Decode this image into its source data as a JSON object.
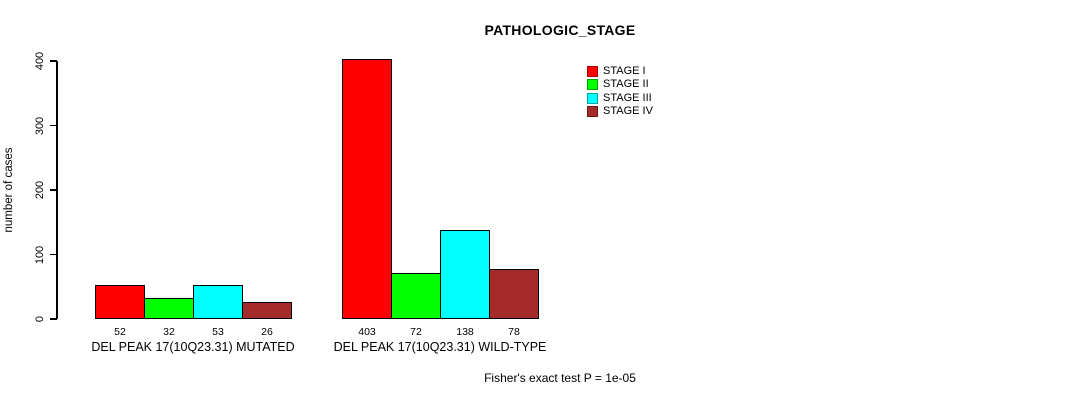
{
  "chart_data": {
    "type": "bar",
    "title": "PATHOLOGIC_STAGE",
    "ylabel": "number of cases",
    "xlabel": "",
    "ylim": [
      0,
      400
    ],
    "yticks": [
      0,
      100,
      200,
      300,
      400
    ],
    "categories": [
      "DEL PEAK 17(10Q23.31) MUTATED",
      "DEL PEAK 17(10Q23.31) WILD-TYPE"
    ],
    "series": [
      {
        "name": "STAGE I",
        "color": "#FF0000",
        "values": [
          52,
          403
        ]
      },
      {
        "name": "STAGE II",
        "color": "#00FF00",
        "values": [
          32,
          72
        ]
      },
      {
        "name": "STAGE III",
        "color": "#00FFFF",
        "values": [
          53,
          138
        ]
      },
      {
        "name": "STAGE IV",
        "color": "#A52A2A",
        "values": [
          26,
          78
        ]
      }
    ],
    "bar_value_labels": [
      [
        "52",
        "32",
        "53",
        "26"
      ],
      [
        "403",
        "72",
        "138",
        "78"
      ]
    ],
    "annotation": "Fisher's exact test P = 1e-05",
    "legend_position": "top-right",
    "grid": false,
    "background_color": "#FFFFFF",
    "axis_color": "#000000",
    "bar_border_color": "#000000"
  }
}
